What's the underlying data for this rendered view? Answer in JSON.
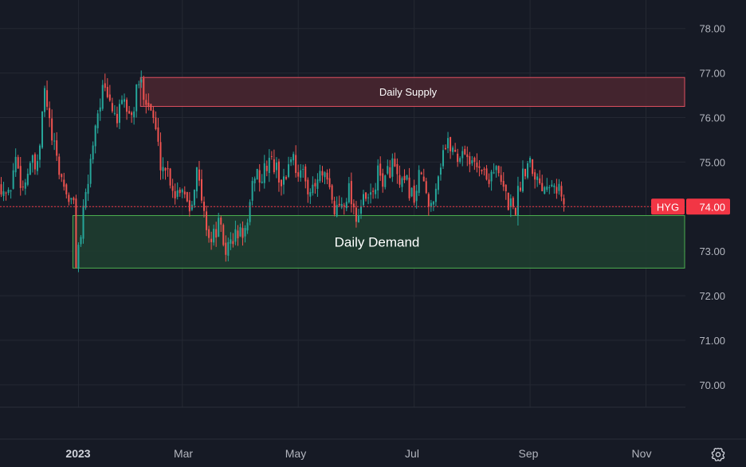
{
  "chart_data": {
    "type": "candlestick",
    "symbol": "HYG",
    "last_price_label": "74.00",
    "last_price": 74.0,
    "ylim": [
      69.55,
      78.55
    ],
    "y_ticks": [
      "78.00",
      "77.00",
      "76.00",
      "75.00",
      "74.00",
      "73.00",
      "72.00",
      "71.00",
      "70.00"
    ],
    "y_tick_values": [
      78,
      77,
      76,
      75,
      74,
      73,
      72,
      71,
      70
    ],
    "x_ticks": [
      {
        "label": "2023",
        "major": true
      },
      {
        "label": "Mar",
        "major": false
      },
      {
        "label": "May",
        "major": false
      },
      {
        "label": "Jul",
        "major": false
      },
      {
        "label": "Sep",
        "major": false
      },
      {
        "label": "Nov",
        "major": false
      }
    ],
    "zones": [
      {
        "label": "Daily Supply",
        "type": "supply",
        "low": 76.25,
        "high": 76.9,
        "start_bar": 58
      },
      {
        "label": "Daily Demand",
        "type": "demand",
        "low": 72.62,
        "high": 73.8,
        "start_bar": 30
      }
    ],
    "colors": {
      "up": "#26a69a",
      "down": "#ef5350",
      "supply_fill": "#4a2530",
      "supply_border": "#e05060",
      "demand_fill": "#1f3d30",
      "demand_border": "#4caf50",
      "badge": "#f23645",
      "background": "#161a25",
      "grid": "#242833"
    },
    "anchors": [
      [
        0,
        74.5
      ],
      [
        3,
        74.2
      ],
      [
        6,
        75.1
      ],
      [
        9,
        74.4
      ],
      [
        12,
        75.0
      ],
      [
        15,
        74.8
      ],
      [
        18,
        76.6
      ],
      [
        21,
        75.5
      ],
      [
        24,
        74.8
      ],
      [
        27,
        74.3
      ],
      [
        30,
        74.0
      ],
      [
        31,
        72.8
      ],
      [
        33,
        73.4
      ],
      [
        36,
        74.6
      ],
      [
        39,
        75.9
      ],
      [
        42,
        76.6
      ],
      [
        45,
        76.3
      ],
      [
        48,
        76.0
      ],
      [
        51,
        76.3
      ],
      [
        54,
        76.0
      ],
      [
        57,
        76.8
      ],
      [
        60,
        76.5
      ],
      [
        63,
        76.0
      ],
      [
        66,
        75.0
      ],
      [
        69,
        74.8
      ],
      [
        72,
        74.3
      ],
      [
        75,
        74.5
      ],
      [
        78,
        74.0
      ],
      [
        81,
        74.8
      ],
      [
        84,
        73.8
      ],
      [
        87,
        73.2
      ],
      [
        90,
        73.6
      ],
      [
        93,
        73.0
      ],
      [
        96,
        73.3
      ],
      [
        99,
        73.4
      ],
      [
        102,
        73.5
      ],
      [
        105,
        74.8
      ],
      [
        108,
        74.6
      ],
      [
        111,
        75.1
      ],
      [
        114,
        74.8
      ],
      [
        117,
        74.5
      ],
      [
        120,
        75.2
      ],
      [
        123,
        74.8
      ],
      [
        126,
        74.6
      ],
      [
        129,
        74.3
      ],
      [
        132,
        74.7
      ],
      [
        135,
        74.5
      ],
      [
        138,
        73.9
      ],
      [
        141,
        74.1
      ],
      [
        144,
        74.4
      ],
      [
        147,
        73.8
      ],
      [
        150,
        74.1
      ],
      [
        153,
        74.2
      ],
      [
        156,
        74.7
      ],
      [
        159,
        74.6
      ],
      [
        162,
        75.0
      ],
      [
        165,
        74.4
      ],
      [
        168,
        74.5
      ],
      [
        171,
        74.2
      ],
      [
        174,
        74.8
      ],
      [
        177,
        73.9
      ],
      [
        180,
        74.5
      ],
      [
        183,
        75.3
      ],
      [
        186,
        75.4
      ],
      [
        189,
        75.1
      ],
      [
        192,
        75.3
      ],
      [
        195,
        74.9
      ],
      [
        198,
        75.0
      ],
      [
        201,
        74.6
      ],
      [
        204,
        74.9
      ],
      [
        207,
        74.5
      ],
      [
        210,
        74.1
      ],
      [
        213,
        74.0
      ],
      [
        216,
        74.8
      ],
      [
        219,
        75.1
      ],
      [
        222,
        74.6
      ],
      [
        225,
        74.5
      ],
      [
        228,
        74.7
      ],
      [
        231,
        74.4
      ],
      [
        233,
        74.0
      ]
    ]
  },
  "settings": {
    "icon": "gear-icon"
  }
}
